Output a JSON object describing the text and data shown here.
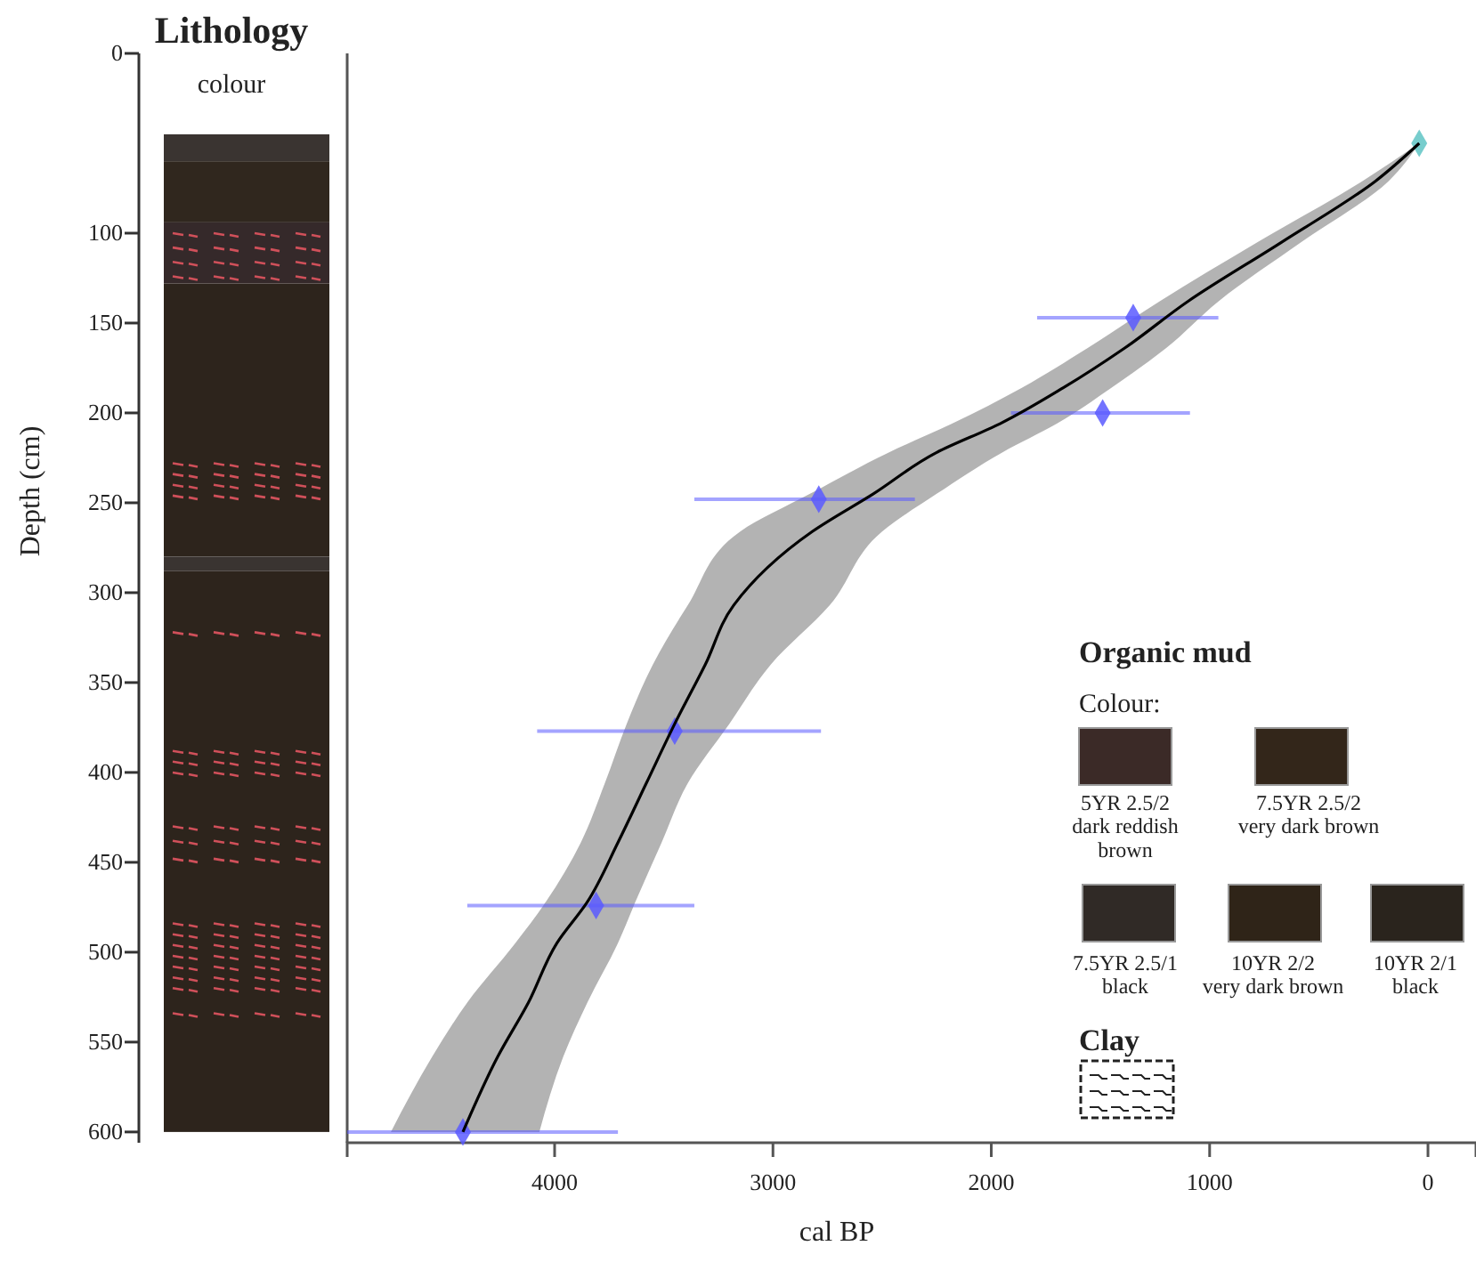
{
  "chart_data": {
    "type": "line",
    "orientation": "horizontal",
    "xlabel": "cal BP",
    "ylabel": "Depth (cm)",
    "xlim": [
      4950,
      -220
    ],
    "xticks": [
      4000,
      3000,
      2000,
      1000,
      0
    ],
    "ylim": [
      606,
      0
    ],
    "yticks": [
      0,
      100,
      150,
      200,
      250,
      300,
      350,
      400,
      450,
      500,
      550,
      600
    ],
    "series": [
      {
        "color": "#000000",
        "x": [
          50,
          71,
          105,
          138,
          164,
          186,
          206,
          222,
          245,
          266,
          307,
          340,
          373,
          406,
          439,
          472,
          495,
          528,
          558,
          600
        ],
        "values": [
          40,
          240,
          670,
          1100,
          1390,
          1670,
          1960,
          2250,
          2540,
          2820,
          3180,
          3310,
          3450,
          3580,
          3710,
          3850,
          3990,
          4120,
          4260,
          4420
        ],
        "lower": [
          40,
          180,
          580,
          960,
          1200,
          1450,
          1700,
          1950,
          2250,
          2500,
          2740,
          3010,
          3200,
          3390,
          3510,
          3630,
          3710,
          3850,
          3960,
          4070
        ],
        "upper": [
          40,
          300,
          780,
          1230,
          1560,
          1860,
          2180,
          2470,
          2830,
          3150,
          3390,
          3550,
          3670,
          3770,
          3880,
          4040,
          4180,
          4400,
          4560,
          4750
        ]
      },
      {
        "type": "scatter",
        "marker": "diamond",
        "color": "#5a5aff",
        "x": [
          147,
          200,
          248,
          377,
          474,
          600
        ],
        "values": [
          1350,
          1490,
          2790,
          3450,
          3810,
          4420
        ],
        "errors": [
          [
            960,
            1790
          ],
          [
            1090,
            1910
          ],
          [
            2350,
            3360
          ],
          [
            2780,
            4080
          ],
          [
            3360,
            4400
          ],
          [
            3710,
            4950
          ]
        ]
      },
      {
        "type": "scatter",
        "marker": "diamond",
        "color": "#5fc4c4",
        "x": [
          50
        ],
        "values": [
          40
        ],
        "errors": [
          null
        ]
      }
    ],
    "annotations": [
      "Lithology",
      "colour",
      "Organic mud",
      "Colour:",
      "5YR 2.5/2\ndark reddish\nbrown",
      "7.5YR 2.5/2\nvery dark brown",
      "7.5YR 2.5/1\nblack",
      "10YR 2/2\nvery dark brown",
      "10YR 2/1\nblack",
      "Clay"
    ]
  }
}
